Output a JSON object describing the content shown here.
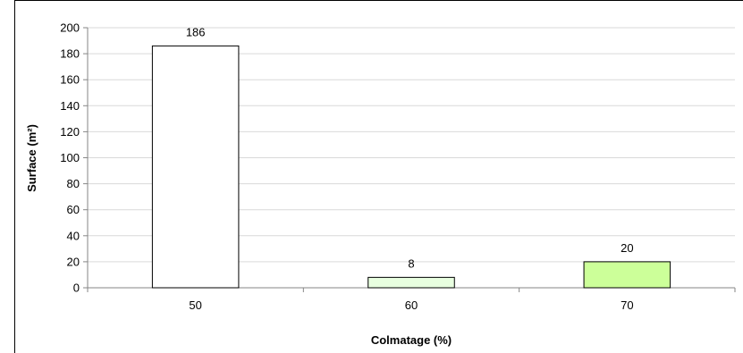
{
  "chart_data": {
    "type": "bar",
    "categories": [
      "50",
      "60",
      "70"
    ],
    "values": [
      186,
      8,
      20
    ],
    "data_labels": [
      "186",
      "8",
      "20"
    ],
    "xlabel": "Colmatage (%)",
    "ylabel": "Surface (m²)",
    "ylim": [
      0,
      200
    ],
    "yticks": [
      0,
      20,
      40,
      60,
      80,
      100,
      120,
      140,
      160,
      180,
      200
    ],
    "grid": true,
    "legend": "none",
    "bar_colors": [
      "#ffffff",
      "#e8ffe0",
      "#ccff99"
    ],
    "bar_edge_color": "#000000",
    "grid_color": "#d9d9d9",
    "axis_color": "#868686"
  }
}
